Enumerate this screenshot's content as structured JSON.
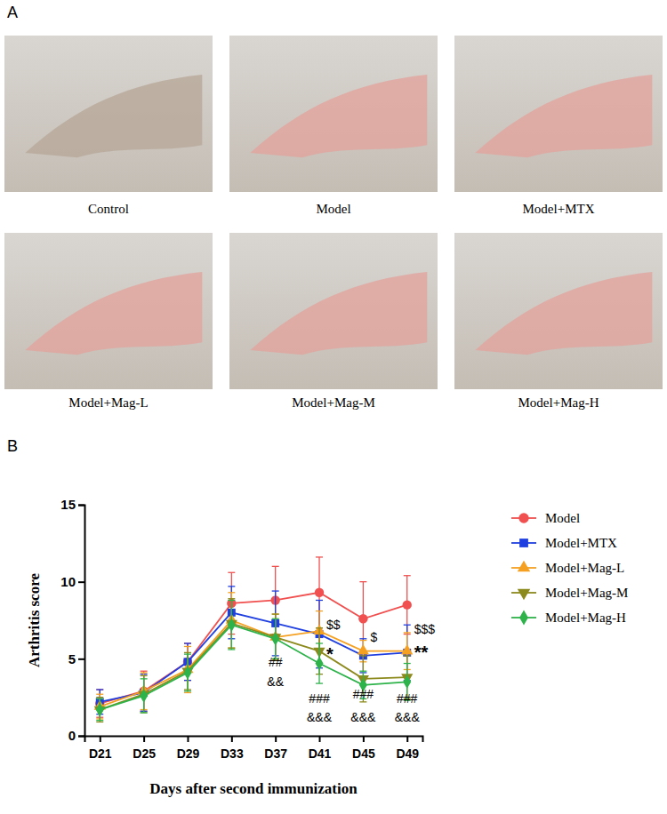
{
  "panel_labels": [
    "A",
    "B"
  ],
  "photos": {
    "captions": [
      "Control",
      "Model",
      "Model+MTX",
      "Model+Mag-L",
      "Model+Mag-M",
      "Model+Mag-H"
    ]
  },
  "chart_data": {
    "type": "line",
    "x_label": "Days after second immunization",
    "y_label": "Arthritis score",
    "categories": [
      "D21",
      "D25",
      "D29",
      "D33",
      "D37",
      "D41",
      "D45",
      "D49"
    ],
    "ylim": [
      0,
      15
    ],
    "yticks": [
      0,
      5,
      10,
      15
    ],
    "legend": "right",
    "series": [
      {
        "name": "Model",
        "color": "#f0504f",
        "marker": "circle",
        "values": [
          2.1,
          2.9,
          4.8,
          8.6,
          8.8,
          9.3,
          7.6,
          8.5
        ],
        "errors": [
          0.9,
          1.3,
          1.2,
          2.0,
          2.2,
          2.3,
          2.4,
          1.9
        ]
      },
      {
        "name": "Model+MTX",
        "color": "#1f3fe0",
        "marker": "square",
        "values": [
          2.2,
          2.8,
          4.8,
          8.0,
          7.3,
          6.6,
          5.2,
          5.4
        ],
        "errors": [
          0.8,
          1.2,
          1.2,
          1.7,
          2.1,
          2.2,
          1.1,
          1.8
        ]
      },
      {
        "name": "Model+Mag-L",
        "color": "#f5a020",
        "marker": "triangle",
        "values": [
          1.9,
          2.9,
          4.3,
          7.5,
          6.4,
          6.8,
          5.5,
          5.5
        ],
        "errors": [
          0.8,
          1.2,
          1.5,
          1.8,
          1.5,
          1.3,
          0.7,
          1.2
        ]
      },
      {
        "name": "Model+Mag-M",
        "color": "#8c8a1c",
        "marker": "triangle-down",
        "values": [
          1.7,
          2.7,
          4.2,
          7.3,
          6.4,
          5.5,
          3.7,
          3.8
        ],
        "errors": [
          0.8,
          1.2,
          1.2,
          1.6,
          1.5,
          1.5,
          1.5,
          1.4
        ]
      },
      {
        "name": "Model+Mag-H",
        "color": "#2db34a",
        "marker": "diamond",
        "values": [
          1.7,
          2.6,
          4.1,
          7.2,
          6.3,
          4.7,
          3.3,
          3.5
        ],
        "errors": [
          0.7,
          1.1,
          1.2,
          1.6,
          1.3,
          1.3,
          0.9,
          1.2
        ]
      }
    ],
    "annotations": [
      {
        "text": "##",
        "x": "D37",
        "y": 4.8
      },
      {
        "text": "&&",
        "x": "D37",
        "y": 3.5
      },
      {
        "text": "###",
        "x": "D41",
        "y": 2.4
      },
      {
        "text": "&&&",
        "x": "D41",
        "y": 1.2
      },
      {
        "text": "*",
        "x": "D41",
        "y": 5.6
      },
      {
        "text": "$$",
        "x": "D41",
        "y": 7.2
      },
      {
        "text": "###",
        "x": "D45",
        "y": 2.7
      },
      {
        "text": "&&&",
        "x": "D45",
        "y": 1.2
      },
      {
        "text": "$",
        "x": "D45",
        "y": 6.4
      },
      {
        "text": "###",
        "x": "D49",
        "y": 2.4
      },
      {
        "text": "&&&",
        "x": "D49",
        "y": 1.2
      },
      {
        "text": "$$$",
        "x": "D49",
        "y": 6.9
      },
      {
        "text": "**",
        "x": "D49",
        "y": 5.7
      }
    ]
  }
}
